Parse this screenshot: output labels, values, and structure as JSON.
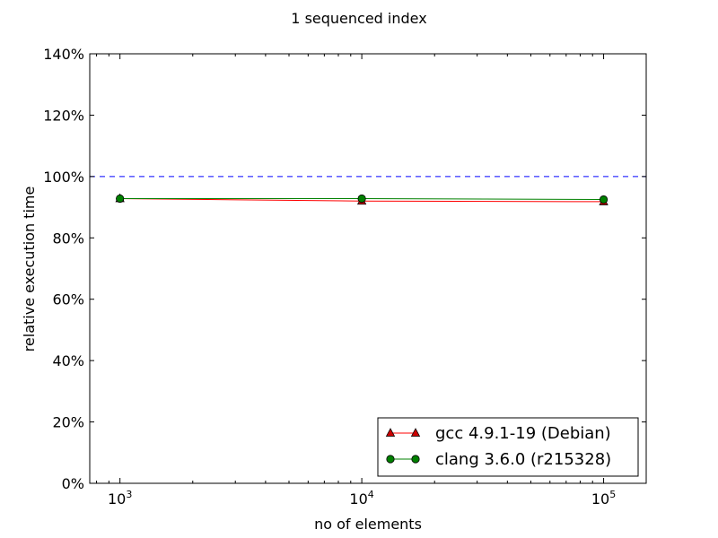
{
  "chart_data": {
    "type": "line",
    "title": "1 sequenced index",
    "xlabel": "no of elements",
    "ylabel": "relative execution time",
    "xscale": "log",
    "xlim": [
      750,
      150000
    ],
    "ylim": [
      0,
      140
    ],
    "x": [
      1000,
      10000,
      100000
    ],
    "x_ticks": [
      {
        "value": 1000,
        "base": "10",
        "exp": "3"
      },
      {
        "value": 10000,
        "base": "10",
        "exp": "4"
      },
      {
        "value": 100000,
        "base": "10",
        "exp": "5"
      }
    ],
    "y_ticks": [
      {
        "value": 0,
        "label": "0%"
      },
      {
        "value": 20,
        "label": "20%"
      },
      {
        "value": 40,
        "label": "40%"
      },
      {
        "value": 60,
        "label": "60%"
      },
      {
        "value": 80,
        "label": "80%"
      },
      {
        "value": 100,
        "label": "100%"
      },
      {
        "value": 120,
        "label": "120%"
      },
      {
        "value": 140,
        "label": "140%"
      }
    ],
    "reference_line": {
      "value": 100,
      "color": "#0000ff",
      "style": "dashed"
    },
    "series": [
      {
        "name": "gcc 4.9.1-19 (Debian)",
        "values": [
          92.8,
          92.0,
          91.8
        ],
        "color": "#ff0000",
        "marker_color": "#cc0000",
        "marker": "triangle"
      },
      {
        "name": "clang 3.6.0 (r215328)",
        "values": [
          92.8,
          92.8,
          92.5
        ],
        "color": "#008000",
        "marker_color": "#008000",
        "marker": "circle"
      }
    ],
    "legend_position": "lower-right",
    "grid": false
  }
}
